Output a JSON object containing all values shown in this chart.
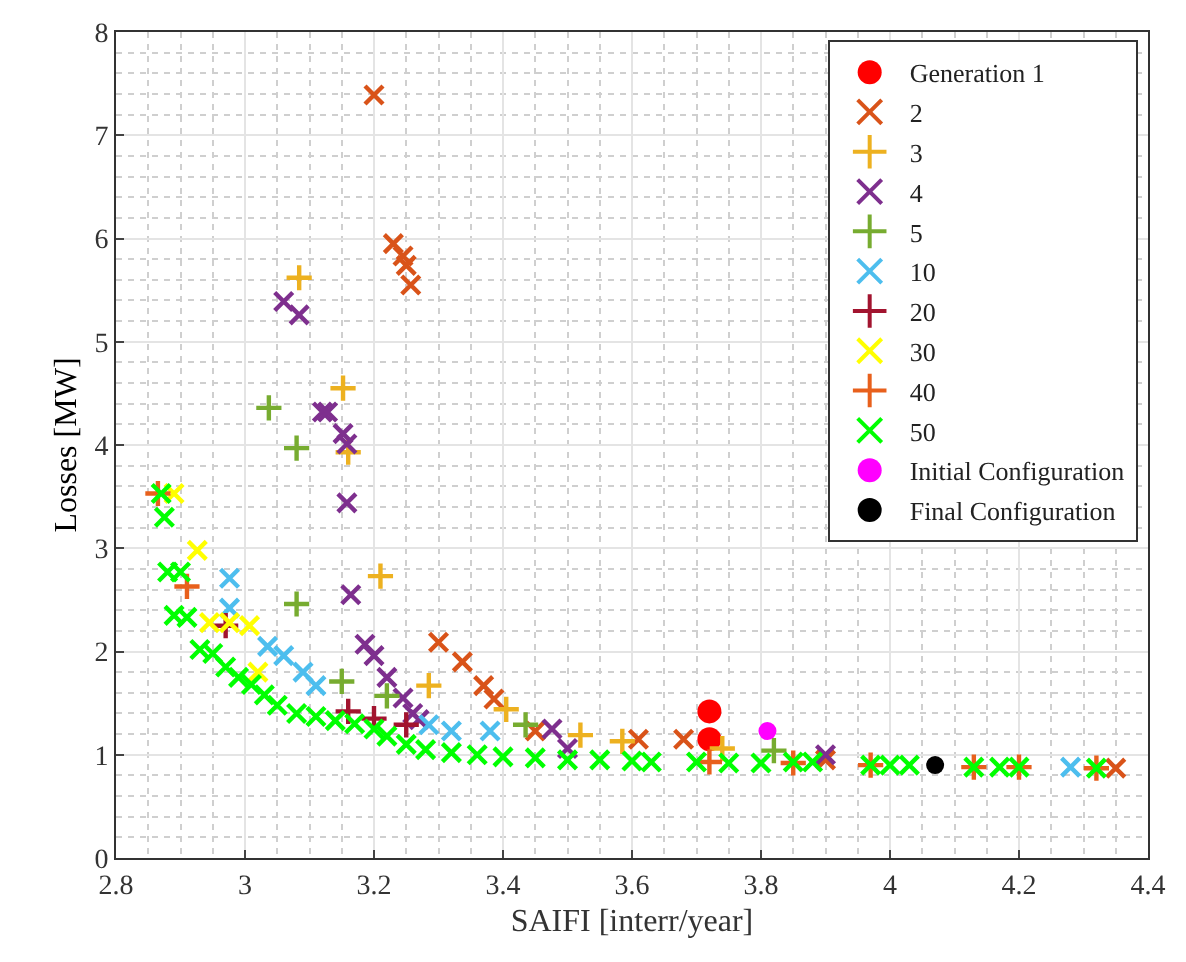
{
  "chart_data": {
    "type": "scatter",
    "xlabel": "SAIFI [interr/year]",
    "ylabel": "Losses [MW]",
    "xlim": [
      2.8,
      4.4
    ],
    "ylim": [
      0,
      8
    ],
    "xticks": [
      2.8,
      3,
      3.2,
      3.4,
      3.6,
      3.8,
      4,
      4.2,
      4.4
    ],
    "yticks": [
      0,
      1,
      2,
      3,
      4,
      5,
      6,
      7,
      8
    ],
    "grid": true,
    "legend": "top right",
    "series": [
      {
        "name": "Generation 1",
        "color": "#ff0000",
        "marker": "circle",
        "x": [
          3.72,
          3.72
        ],
        "values": [
          1.42,
          1.15
        ]
      },
      {
        "name": "2",
        "color": "#d95319",
        "marker": "cross",
        "x": [
          3.2,
          3.23,
          3.245,
          3.25,
          3.257,
          3.3,
          3.337,
          3.37,
          3.386,
          3.45,
          3.61,
          3.68,
          3.9,
          4.35
        ],
        "values": [
          7.39,
          5.95,
          5.83,
          5.74,
          5.55,
          2.09,
          1.9,
          1.67,
          1.54,
          1.23,
          1.15,
          1.15,
          0.95,
          0.87
        ]
      },
      {
        "name": "3",
        "color": "#edb120",
        "marker": "plus",
        "x": [
          3.084,
          3.152,
          3.16,
          3.21,
          3.285,
          3.405,
          3.52,
          3.585,
          3.74
        ],
        "values": [
          5.62,
          4.55,
          3.93,
          2.73,
          1.67,
          1.44,
          1.19,
          1.13,
          1.06
        ]
      },
      {
        "name": "4",
        "color": "#7e2f8e",
        "marker": "cross",
        "x": [
          3.06,
          3.084,
          3.12,
          3.128,
          3.152,
          3.158,
          3.158,
          3.164,
          3.186,
          3.2,
          3.22,
          3.245,
          3.26,
          3.27,
          3.476,
          3.5,
          3.9
        ],
        "values": [
          5.39,
          5.26,
          4.32,
          4.32,
          4.11,
          4.01,
          3.44,
          2.55,
          2.07,
          1.96,
          1.75,
          1.55,
          1.4,
          1.34,
          1.25,
          1.06,
          1.0
        ]
      },
      {
        "name": "5",
        "color": "#77ac30",
        "marker": "plus",
        "x": [
          3.037,
          3.08,
          3.08,
          3.15,
          3.22,
          3.435,
          3.82
        ],
        "values": [
          4.36,
          3.97,
          2.46,
          1.71,
          1.57,
          1.29,
          1.04
        ]
      },
      {
        "name": "10",
        "color": "#4dbeee",
        "marker": "cross",
        "x": [
          2.976,
          2.976,
          3.035,
          3.06,
          3.09,
          3.11,
          3.285,
          3.32,
          3.38,
          4.28
        ],
        "values": [
          2.71,
          2.42,
          2.05,
          1.96,
          1.8,
          1.67,
          1.29,
          1.23,
          1.23,
          0.88
        ]
      },
      {
        "name": "20",
        "color": "#a2142f",
        "marker": "plus",
        "x": [
          2.97,
          3.16,
          3.2,
          3.25
        ],
        "values": [
          2.25,
          1.42,
          1.35,
          1.29
        ]
      },
      {
        "name": "30",
        "color": "#ffff00",
        "marker": "cross",
        "x": [
          2.89,
          2.926,
          2.945,
          2.976,
          3.007,
          3.02
        ],
        "values": [
          3.53,
          2.98,
          2.28,
          2.28,
          2.25,
          1.8
        ]
      },
      {
        "name": "40",
        "color": "#e8601c",
        "marker": "plus",
        "x": [
          2.865,
          2.91,
          3.72,
          3.85,
          3.97,
          4.13,
          4.2,
          4.32
        ],
        "values": [
          3.53,
          2.63,
          0.93,
          0.92,
          0.9,
          0.88,
          0.88,
          0.87
        ]
      },
      {
        "name": "50",
        "color": "#00ff00",
        "marker": "cross",
        "x": [
          2.87,
          2.875,
          2.88,
          2.9,
          2.89,
          2.91,
          2.93,
          2.95,
          2.97,
          2.99,
          3.01,
          3.03,
          3.05,
          3.08,
          3.11,
          3.14,
          3.17,
          3.2,
          3.22,
          3.25,
          3.28,
          3.32,
          3.36,
          3.4,
          3.45,
          3.5,
          3.55,
          3.6,
          3.63,
          3.7,
          3.75,
          3.8,
          3.85,
          3.88,
          3.97,
          4.0,
          4.03,
          4.06,
          4.13,
          4.17,
          4.2,
          4.32
        ],
        "values": [
          3.53,
          3.3,
          2.77,
          2.77,
          2.35,
          2.33,
          2.02,
          1.98,
          1.85,
          1.75,
          1.68,
          1.58,
          1.48,
          1.4,
          1.37,
          1.33,
          1.3,
          1.25,
          1.18,
          1.1,
          1.05,
          1.02,
          1.0,
          0.98,
          0.97,
          0.95,
          0.95,
          0.94,
          0.93,
          0.93,
          0.92,
          0.92,
          0.93,
          0.93,
          0.9,
          0.9,
          0.9,
          null,
          0.88,
          0.88,
          0.88,
          0.87
        ]
      },
      {
        "name": "Initial Configuration",
        "color": "#ff00ff",
        "marker": "circle",
        "x": [
          3.81
        ],
        "values": [
          1.23
        ]
      },
      {
        "name": "Final Configuration",
        "color": "#000000",
        "marker": "circle",
        "x": [
          4.07
        ],
        "values": [
          0.9
        ]
      }
    ]
  }
}
